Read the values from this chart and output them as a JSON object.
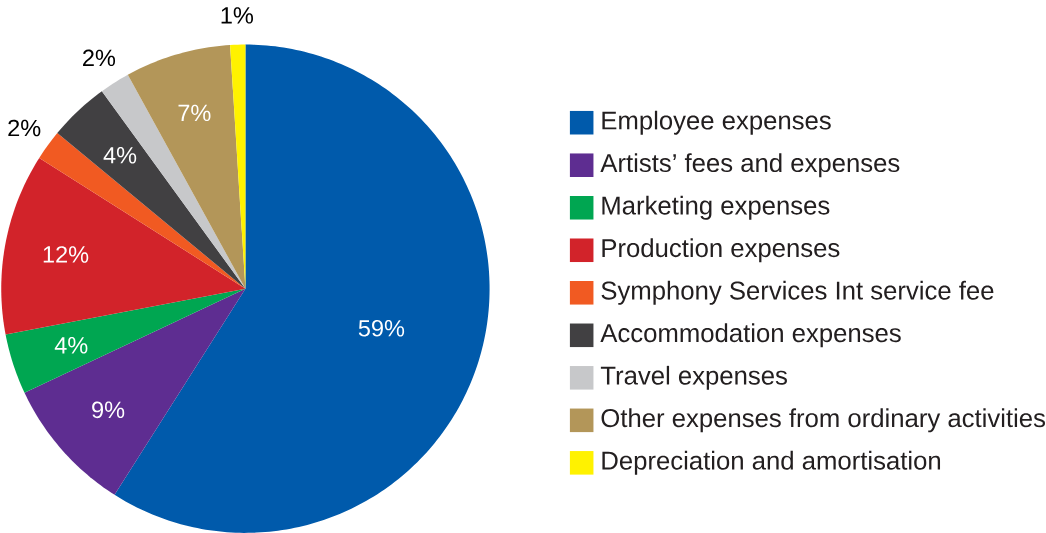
{
  "chart_data": {
    "type": "pie",
    "categories": [
      "Employee expenses",
      "Artists’ fees and expenses",
      "Marketing expenses",
      "Production expenses",
      "Symphony Services Int service fee",
      "Accommodation expenses",
      "Travel expenses",
      "Other expenses from ordinary activities",
      "Depreciation and amortisation"
    ],
    "values": [
      59,
      9,
      4,
      12,
      2,
      4,
      2,
      7,
      1
    ],
    "value_labels": [
      "59%",
      "9%",
      "4%",
      "12%",
      "2%",
      "4%",
      "2%",
      "7%",
      "1%"
    ],
    "colors": [
      "#005aab",
      "#5e2d91",
      "#00a651",
      "#d2232a",
      "#f15a22",
      "#414042",
      "#c7c8ca",
      "#b39659",
      "#fff200"
    ],
    "legend": "right"
  }
}
